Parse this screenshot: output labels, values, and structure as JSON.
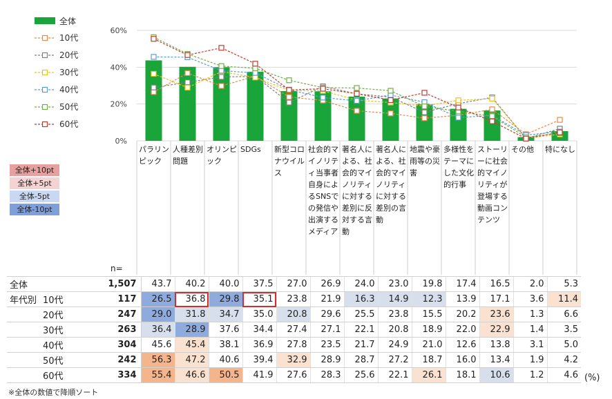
{
  "chart_data": {
    "type": "bar",
    "title": "",
    "yticks": [
      "60%",
      "40%",
      "20%",
      "0%"
    ],
    "ylim": [
      0,
      60
    ],
    "categories": [
      "パラリンピック",
      "人種差別問題",
      "オリンピック",
      "SDGs",
      "新型コロナウイルス",
      "社会的マイノリティ当事者自身によるSNSでの発信や出演するメディア",
      "著名人による、社会的マイノリティに対する差別に反対する言動",
      "著名人による、社会的マイノリティに対する差別の言動",
      "地震や豪雨等の災害",
      "多様性をテーマにした文化的行事",
      "ストーリーに社会的マイノリティが登場する動画コンテンツ",
      "その他",
      "特になし"
    ],
    "bar_series": {
      "name": "全体",
      "color": "#1aa53a",
      "values": [
        43.7,
        40.2,
        40.0,
        37.5,
        27.0,
        26.9,
        24.0,
        23.0,
        19.8,
        17.4,
        16.5,
        2.0,
        5.3
      ]
    },
    "series": [
      {
        "name": "10代",
        "color": "#e8894a",
        "values": [
          26.5,
          36.8,
          29.8,
          35.1,
          23.8,
          21.9,
          16.3,
          14.9,
          12.3,
          13.9,
          17.1,
          3.6,
          11.4
        ]
      },
      {
        "name": "20代",
        "color": "#7f7f7f",
        "values": [
          29.0,
          31.8,
          34.7,
          35.0,
          20.8,
          29.6,
          25.5,
          23.8,
          15.5,
          20.2,
          23.6,
          1.3,
          6.6
        ]
      },
      {
        "name": "30代",
        "color": "#e5c31a",
        "values": [
          36.4,
          28.9,
          37.6,
          34.4,
          27.4,
          27.1,
          22.1,
          20.8,
          18.9,
          22.0,
          22.9,
          1.4,
          3.5
        ]
      },
      {
        "name": "40代",
        "color": "#5b9bd5",
        "values": [
          45.6,
          45.4,
          38.1,
          36.9,
          27.8,
          23.5,
          21.7,
          24.9,
          21.0,
          12.6,
          13.8,
          3.1,
          5.0
        ]
      },
      {
        "name": "50代",
        "color": "#70ad47",
        "values": [
          56.3,
          47.2,
          40.6,
          39.4,
          32.9,
          28.9,
          28.7,
          27.2,
          18.7,
          16.0,
          13.4,
          1.9,
          4.2
        ]
      },
      {
        "name": "60代",
        "color": "#c0392b",
        "values": [
          55.4,
          46.6,
          50.5,
          41.9,
          27.6,
          28.3,
          25.6,
          22.1,
          26.1,
          18.1,
          10.6,
          1.2,
          4.6
        ]
      }
    ]
  },
  "color_key": [
    {
      "label": "全体+10pt",
      "color": "#e6a0a0"
    },
    {
      "label": "全体+5pt",
      "color": "#f5d3d3"
    },
    {
      "label": "全体-5pt",
      "color": "#c9d8f0"
    },
    {
      "label": "全体-10pt",
      "color": "#7f9fd8"
    }
  ],
  "table": {
    "n_header": "n=",
    "rows": [
      {
        "group": "全体",
        "label": "",
        "n": "1,507",
        "cells": [
          [
            "43.7",
            ""
          ],
          [
            "40.2",
            ""
          ],
          [
            "40.0",
            ""
          ],
          [
            "37.5",
            ""
          ],
          [
            "27.0",
            ""
          ],
          [
            "26.9",
            ""
          ],
          [
            "24.0",
            ""
          ],
          [
            "23.0",
            ""
          ],
          [
            "19.8",
            ""
          ],
          [
            "17.4",
            ""
          ],
          [
            "16.5",
            ""
          ],
          [
            "2.0",
            ""
          ],
          [
            "5.3",
            ""
          ]
        ]
      },
      {
        "group": "年代別",
        "label": "10代",
        "n": "117",
        "cells": [
          [
            "26.5",
            "m10"
          ],
          [
            "36.8",
            "box"
          ],
          [
            "29.8",
            "m10"
          ],
          [
            "35.1",
            "box"
          ],
          [
            "23.8",
            ""
          ],
          [
            "21.9",
            ""
          ],
          [
            "16.3",
            "m5"
          ],
          [
            "14.9",
            "m5"
          ],
          [
            "12.3",
            "m5"
          ],
          [
            "13.9",
            ""
          ],
          [
            "17.1",
            ""
          ],
          [
            "3.6",
            ""
          ],
          [
            "11.4",
            "p5"
          ]
        ]
      },
      {
        "group": "",
        "label": "20代",
        "n": "247",
        "cells": [
          [
            "29.0",
            "m10"
          ],
          [
            "31.8",
            "m5"
          ],
          [
            "34.7",
            "m5"
          ],
          [
            "35.0",
            ""
          ],
          [
            "20.8",
            "m5"
          ],
          [
            "29.6",
            ""
          ],
          [
            "25.5",
            ""
          ],
          [
            "23.8",
            ""
          ],
          [
            "15.5",
            ""
          ],
          [
            "20.2",
            ""
          ],
          [
            "23.6",
            "p5"
          ],
          [
            "1.3",
            ""
          ],
          [
            "6.6",
            ""
          ]
        ]
      },
      {
        "group": "",
        "label": "30代",
        "n": "263",
        "cells": [
          [
            "36.4",
            "m5"
          ],
          [
            "28.9",
            "m10"
          ],
          [
            "37.6",
            ""
          ],
          [
            "34.4",
            ""
          ],
          [
            "27.4",
            ""
          ],
          [
            "27.1",
            ""
          ],
          [
            "22.1",
            ""
          ],
          [
            "20.8",
            ""
          ],
          [
            "18.9",
            ""
          ],
          [
            "22.0",
            ""
          ],
          [
            "22.9",
            "p5"
          ],
          [
            "1.4",
            ""
          ],
          [
            "3.5",
            ""
          ]
        ]
      },
      {
        "group": "",
        "label": "40代",
        "n": "304",
        "cells": [
          [
            "45.6",
            ""
          ],
          [
            "45.4",
            "p5"
          ],
          [
            "38.1",
            ""
          ],
          [
            "36.9",
            ""
          ],
          [
            "27.8",
            ""
          ],
          [
            "23.5",
            ""
          ],
          [
            "21.7",
            ""
          ],
          [
            "24.9",
            ""
          ],
          [
            "21.0",
            ""
          ],
          [
            "12.6",
            ""
          ],
          [
            "13.8",
            ""
          ],
          [
            "3.1",
            ""
          ],
          [
            "5.0",
            ""
          ]
        ]
      },
      {
        "group": "",
        "label": "50代",
        "n": "242",
        "cells": [
          [
            "56.3",
            "p10"
          ],
          [
            "47.2",
            "p5"
          ],
          [
            "40.6",
            ""
          ],
          [
            "39.4",
            ""
          ],
          [
            "32.9",
            "p5"
          ],
          [
            "28.9",
            ""
          ],
          [
            "28.7",
            ""
          ],
          [
            "27.2",
            ""
          ],
          [
            "18.7",
            ""
          ],
          [
            "16.0",
            ""
          ],
          [
            "13.4",
            ""
          ],
          [
            "1.9",
            ""
          ],
          [
            "4.2",
            ""
          ]
        ]
      },
      {
        "group": "",
        "label": "60代",
        "n": "334",
        "cells": [
          [
            "55.4",
            "p10"
          ],
          [
            "46.6",
            "p5"
          ],
          [
            "50.5",
            "p10"
          ],
          [
            "41.9",
            ""
          ],
          [
            "27.6",
            ""
          ],
          [
            "28.3",
            ""
          ],
          [
            "25.6",
            ""
          ],
          [
            "22.1",
            ""
          ],
          [
            "26.1",
            "p5"
          ],
          [
            "18.1",
            ""
          ],
          [
            "10.6",
            "m5"
          ],
          [
            "1.2",
            ""
          ],
          [
            "4.6",
            ""
          ]
        ]
      }
    ]
  },
  "unit": "(%)",
  "footnote": "※全体の数値で降順ソート"
}
